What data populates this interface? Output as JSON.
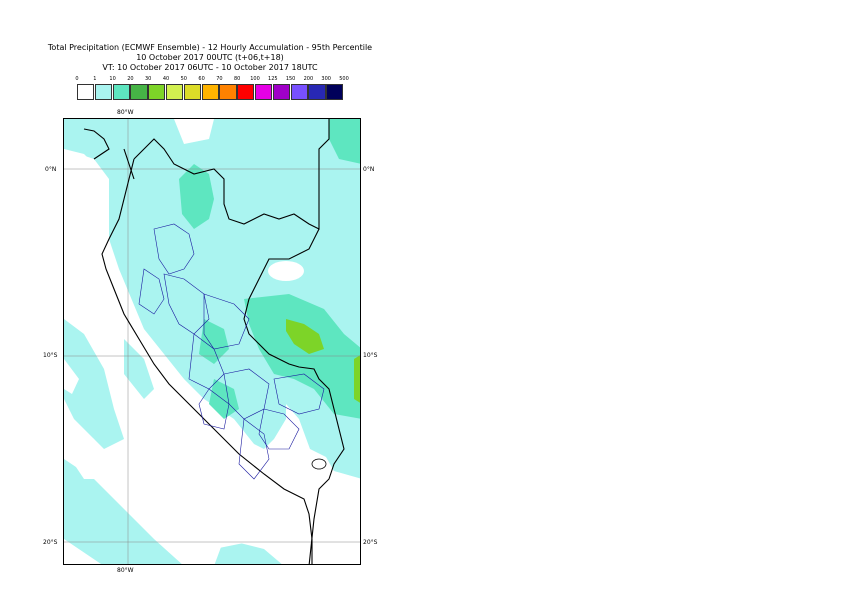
{
  "title": {
    "line1": "Total Precipitation (ECMWF Ensemble) - 12 Hourly Accumulation - 95th Percentile",
    "line2": "10 October 2017 00UTC (t+06,t+18)",
    "line3": "VT: 10 October 2017 06UTC - 10 October 2017 18UTC"
  },
  "legend": {
    "labels": [
      "0",
      "1",
      "10",
      "20",
      "30",
      "40",
      "50",
      "60",
      "70",
      "80",
      "100",
      "125",
      "150",
      "200",
      "300",
      "500"
    ],
    "colors": [
      "#ffffff",
      "#aaf4f0",
      "#5ee6c0",
      "#46b446",
      "#7dd428",
      "#d2f050",
      "#dcdc28",
      "#ffb400",
      "#ff8200",
      "#ff0000",
      "#e600e6",
      "#a000c8",
      "#7850ff",
      "#2828b4",
      "#00005a"
    ]
  },
  "axes": {
    "top_lon": "80°W",
    "bottom_lon": "80°W",
    "lat_0_left": "0°N",
    "lat_0_right": "0°N",
    "lat_10_left": "10°S",
    "lat_10_right": "10°S",
    "lat_20_left": "20°S",
    "lat_20_right": "20°S"
  }
}
